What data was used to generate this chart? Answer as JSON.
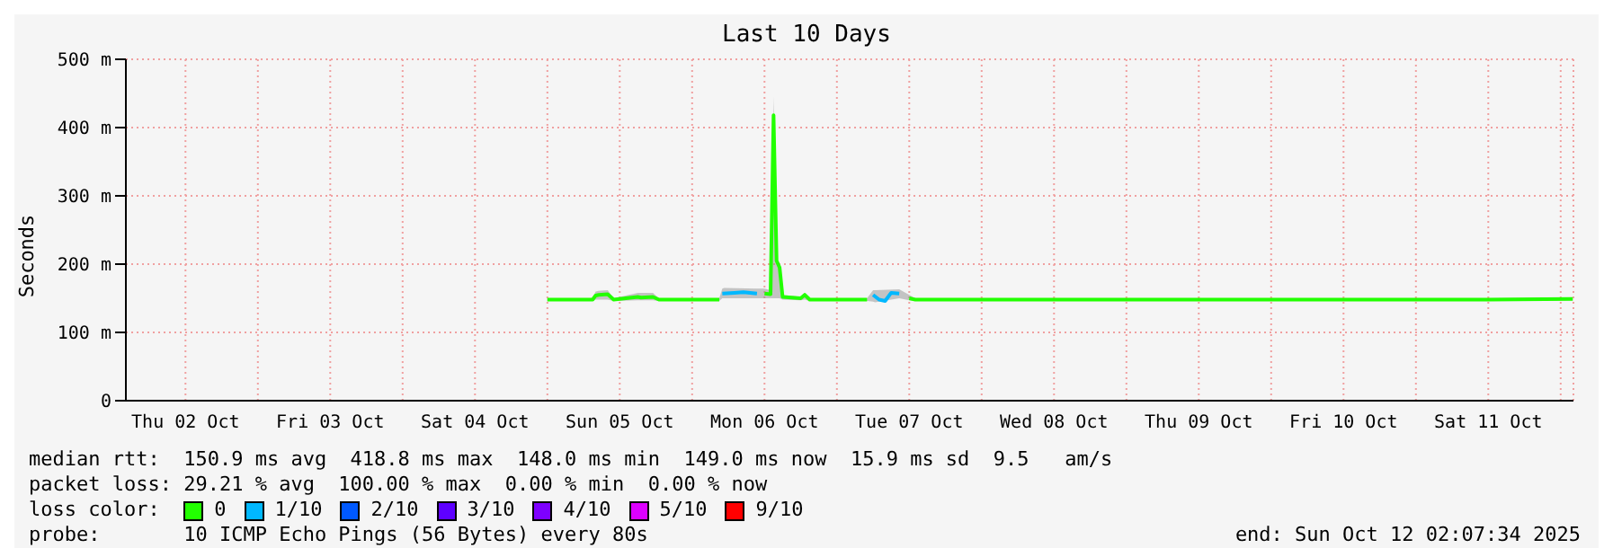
{
  "chart_data": {
    "type": "line",
    "title": "Last 10 Days",
    "ylabel": "Seconds",
    "legend_title": "loss color:",
    "legend": "bottom",
    "grid": true,
    "marker": "none",
    "line_style": "solid",
    "xlim": [
      "2025-10-02T02:07",
      "2025-10-12T02:07"
    ],
    "xticks": [
      {
        "value": "2025-10-02T12:00",
        "label": "Thu 02 Oct"
      },
      {
        "value": "2025-10-03T00:00",
        "label": null
      },
      {
        "value": "2025-10-03T12:00",
        "label": "Fri 03 Oct"
      },
      {
        "value": "2025-10-04T00:00",
        "label": null
      },
      {
        "value": "2025-10-04T12:00",
        "label": "Sat 04 Oct"
      },
      {
        "value": "2025-10-05T00:00",
        "label": null
      },
      {
        "value": "2025-10-05T12:00",
        "label": "Sun 05 Oct"
      },
      {
        "value": "2025-10-06T00:00",
        "label": null
      },
      {
        "value": "2025-10-06T12:00",
        "label": "Mon 06 Oct"
      },
      {
        "value": "2025-10-07T00:00",
        "label": null
      },
      {
        "value": "2025-10-07T12:00",
        "label": "Tue 07 Oct"
      },
      {
        "value": "2025-10-08T00:00",
        "label": null
      },
      {
        "value": "2025-10-08T12:00",
        "label": "Wed 08 Oct"
      },
      {
        "value": "2025-10-09T00:00",
        "label": null
      },
      {
        "value": "2025-10-09T12:00",
        "label": "Thu 09 Oct"
      },
      {
        "value": "2025-10-10T00:00",
        "label": null
      },
      {
        "value": "2025-10-10T12:00",
        "label": "Fri 10 Oct"
      },
      {
        "value": "2025-10-11T00:00",
        "label": null
      },
      {
        "value": "2025-10-11T12:00",
        "label": "Sat 11 Oct"
      },
      {
        "value": "2025-10-12T00:00",
        "label": null
      }
    ],
    "ylim": [
      0,
      500
    ],
    "yticks": [
      0,
      {
        "value": 100,
        "label": "100 m"
      },
      {
        "value": 200,
        "label": "200 m"
      },
      {
        "value": 300,
        "label": "300 m"
      },
      {
        "value": 400,
        "label": "400 m"
      },
      {
        "value": 500,
        "label": "500 m"
      }
    ],
    "series": [
      {
        "name": "0",
        "color": "#22ff00",
        "x": [
          "2025-10-05T00:00",
          "2025-10-05T07:30",
          "2025-10-05T08:00",
          "2025-10-05T08:30",
          "2025-10-05T10:00",
          "2025-10-05T11:00",
          "2025-10-05T15:00",
          "2025-10-05T15:30",
          "2025-10-05T17:30",
          "2025-10-05T18:30",
          "2025-10-06T04:30",
          "2025-10-06T05:00",
          "2025-10-06T05:20",
          "2025-10-06T10:45",
          "2025-10-06T12:00",
          "2025-10-06T13:00",
          "2025-10-06T13:30",
          "2025-10-06T14:00",
          "2025-10-06T14:30",
          "2025-10-06T15:00",
          "2025-10-06T18:00",
          "2025-10-06T18:40",
          "2025-10-06T19:30",
          "2025-10-07T05:00",
          "2025-10-07T06:00",
          "2025-10-07T06:20",
          "2025-10-07T10:20",
          "2025-10-07T12:00",
          "2025-10-07T13:00",
          "2025-10-08T12:00",
          "2025-10-09T12:00",
          "2025-10-10T12:00",
          "2025-10-11T12:00",
          "2025-10-12T02:00"
        ],
        "values": [
          148,
          148,
          154,
          155,
          156,
          148,
          152,
          151,
          152,
          148,
          148,
          null,
          null,
          null,
          157,
          156,
          418,
          205,
          195,
          152,
          150,
          155,
          148,
          148,
          null,
          null,
          null,
          150,
          148,
          148,
          148,
          148,
          148,
          149
        ],
        "lower": [
          146,
          146,
          148,
          148,
          148,
          146,
          147,
          147,
          147,
          146,
          146,
          150,
          150,
          150,
          150,
          150,
          150,
          150,
          150,
          148,
          147,
          148,
          146,
          146,
          145,
          144,
          150,
          147,
          146,
          146,
          146,
          146,
          146,
          147
        ],
        "upper": [
          150,
          150,
          160,
          161,
          162,
          150,
          158,
          158,
          158,
          150,
          150,
          164,
          165,
          164,
          164,
          162,
          445,
          210,
          200,
          155,
          152,
          158,
          150,
          150,
          162,
          162,
          163,
          155,
          150,
          150,
          150,
          150,
          150,
          151
        ]
      },
      {
        "name": "1/10",
        "color": "#00b8ff",
        "x": [
          "2025-10-06T05:00",
          "2025-10-06T07:00",
          "2025-10-06T08:30",
          "2025-10-06T10:45",
          "2025-10-07T00:00",
          "2025-10-07T06:00",
          "2025-10-07T07:00",
          "2025-10-07T08:00",
          "2025-10-07T09:00",
          "2025-10-07T10:20"
        ],
        "values": [
          157,
          158,
          159,
          157,
          null,
          155,
          148,
          146,
          158,
          157
        ]
      },
      {
        "name": "2/10",
        "color": "#0059ff"
      },
      {
        "name": "3/10",
        "color": "#5e00ff"
      },
      {
        "name": "4/10",
        "color": "#7e00ff"
      },
      {
        "name": "5/10",
        "color": "#dd00ff"
      },
      {
        "name": "9/10",
        "color": "#ff0000"
      }
    ],
    "annotations": [
      "median rtt:  150.9 ms avg  418.8 ms max  148.0 ms min  149.0 ms now  15.9 ms sd  9.5   am/s",
      "packet loss: 29.21 % avg  100.00 % max  0.00 % min  0.00 % now",
      "probe:       10 ICMP Echo Pings (56 Bytes) every 80s",
      "end: Sun Oct 12 02:07:34 2025"
    ]
  }
}
